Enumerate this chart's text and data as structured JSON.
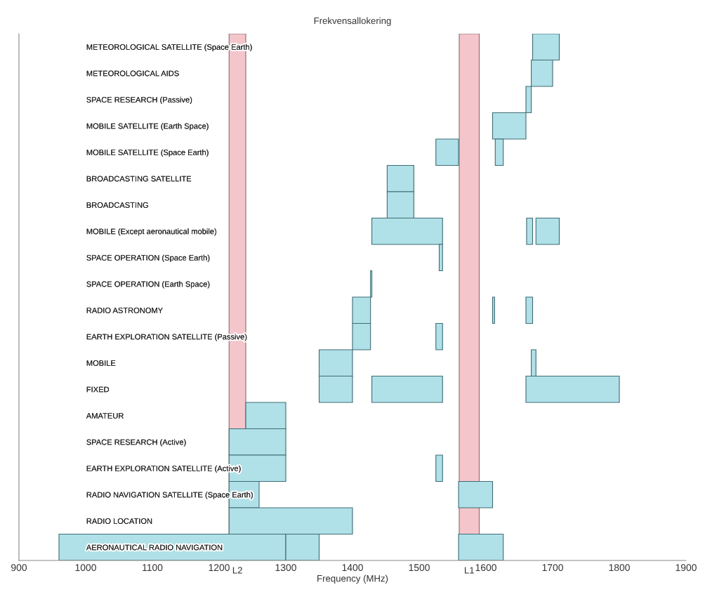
{
  "chart_data": {
    "type": "bar",
    "orientation": "horizontal",
    "title": "Frekvensallokering",
    "xlabel": "Frequency (MHz)",
    "categories": [
      "METEOROLOGICAL SATELLITE (Space Earth)",
      "METEOROLOGICAL AIDS",
      "SPACE RESEARCH (Passive)",
      "MOBILE SATELLITE (Earth Space)",
      "MOBILE SATELLITE (Space Earth)",
      "BROADCASTING SATELLITE",
      "BROADCASTING",
      "MOBILE (Except aeronautical mobile)",
      "SPACE OPERATION (Space Earth)",
      "SPACE OPERATION (Earth Space)",
      "RADIO ASTRONOMY",
      "EARTH EXPLORATION SATELLITE (Passive)",
      "MOBILE",
      "FIXED",
      "AMATEUR",
      "SPACE RESEARCH (Active)",
      "EARTH EXPLORATION SATELLITE (Active)",
      "RADIO NAVIGATION SATELLITE (Space Earth)",
      "RADIO LOCATION",
      "AERONAUTICAL RADIO NAVIGATION"
    ],
    "series": [
      {
        "color": "#b0e0e8",
        "base": [
          1670,
          1668,
          1660,
          1610,
          1525,
          1452,
          1452,
          1429,
          1530,
          1427,
          1400,
          1400,
          1350,
          1350,
          1240,
          1215,
          1215,
          1215,
          1215,
          960
        ],
        "values": [
          40,
          32,
          8,
          50,
          34,
          40,
          40,
          106,
          5,
          2,
          27,
          27,
          50,
          50,
          60,
          85,
          85,
          45,
          185,
          340
        ]
      },
      {
        "color": "#b0e0e8",
        "base": [
          null,
          null,
          null,
          null,
          1614,
          null,
          null,
          1661,
          null,
          null,
          1610,
          1525,
          1668,
          1429,
          null,
          null,
          1525,
          1559,
          null,
          1300
        ],
        "values": [
          null,
          null,
          null,
          null,
          12,
          null,
          null,
          9,
          null,
          null,
          3,
          10,
          7,
          106,
          null,
          null,
          10,
          51,
          null,
          50
        ]
      },
      {
        "color": "#b0e0e8",
        "base": [
          null,
          null,
          null,
          null,
          null,
          null,
          null,
          1675,
          null,
          null,
          1660,
          null,
          null,
          1660,
          null,
          null,
          null,
          null,
          null,
          1559
        ],
        "values": [
          null,
          null,
          null,
          null,
          null,
          null,
          null,
          35,
          null,
          null,
          10,
          null,
          null,
          140,
          null,
          null,
          null,
          null,
          null,
          67
        ]
      }
    ],
    "bands": [
      {
        "axis": "x",
        "from": 1215,
        "to": 1240,
        "label": "L2",
        "color": "#f4c6cc"
      },
      {
        "axis": "x",
        "from": 1560,
        "to": 1590,
        "label": "L1",
        "color": "#f4c6cc"
      }
    ],
    "xlim": [
      900,
      1900
    ],
    "xticks": [
      900,
      1000,
      1100,
      1200,
      1300,
      1400,
      1500,
      1600,
      1700,
      1800,
      1900
    ],
    "grid": false
  }
}
